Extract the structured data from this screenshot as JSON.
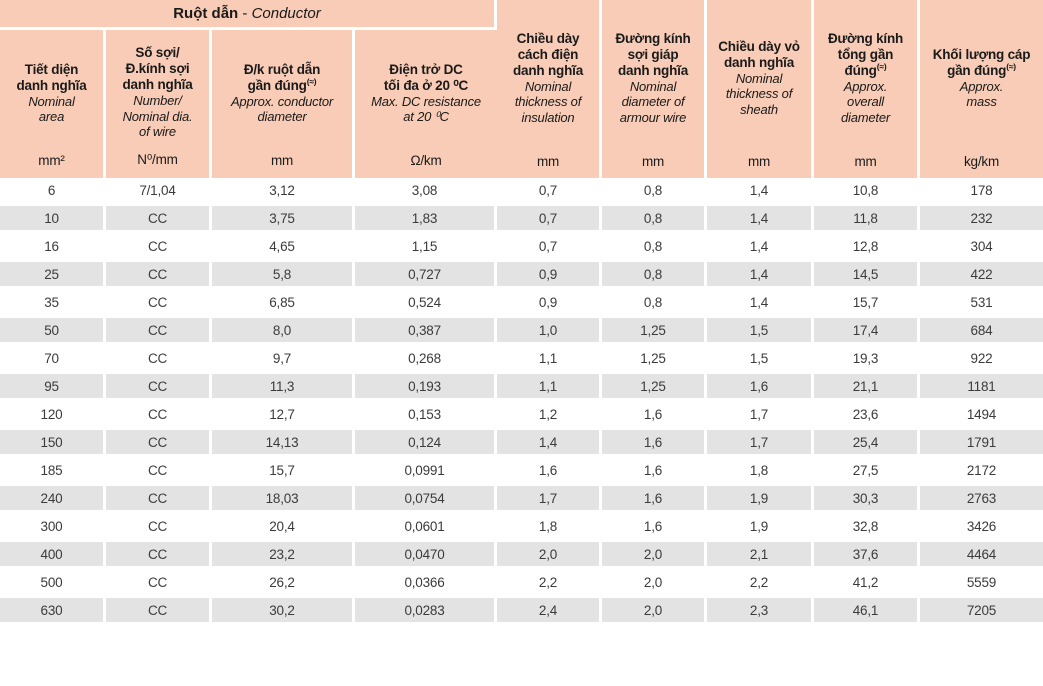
{
  "colors": {
    "header_bg": "#f8ccb6",
    "stripe_bg": "#e3e3e3",
    "divider": "#ffffff",
    "header_text": "#1a1a1a",
    "body_text": "#3b3b3b"
  },
  "table": {
    "group_header": {
      "vi": "Ruột dẫn",
      "sep": " - ",
      "en": "Conductor"
    },
    "columns": [
      {
        "key": "nominal-area",
        "vi": [
          "Tiết diện",
          "danh nghĩa"
        ],
        "en": [
          "Nominal",
          "area"
        ],
        "unit": "mm²",
        "in_group": true
      },
      {
        "key": "number-dia-of-wire",
        "vi": [
          "Số sợi/",
          "Đ.kính sợi",
          "danh nghĩa"
        ],
        "en": [
          "Number/",
          "Nominal dia.",
          "of wire"
        ],
        "unit": "N⁰/mm",
        "in_group": true
      },
      {
        "key": "conductor-dia",
        "vi": [
          "Đ/k ruột dẫn",
          "gần đúng"
        ],
        "sup": "(≈)",
        "en": [
          "Approx. conductor",
          "diameter"
        ],
        "unit": "mm",
        "in_group": true
      },
      {
        "key": "dc-resistance",
        "vi": [
          "Điện trở DC",
          "tối đa ở 20 ⁰C"
        ],
        "en": [
          "Max. DC resistance",
          "at 20 ⁰C"
        ],
        "unit": "Ω/km",
        "in_group": true
      },
      {
        "key": "insulation-thickness",
        "vi": [
          "Chiều dày",
          "cách điện",
          "danh nghĩa"
        ],
        "en": [
          "Nominal",
          "thickness of",
          "insulation"
        ],
        "unit": "mm",
        "in_group": false
      },
      {
        "key": "armour-wire-dia",
        "vi": [
          "Đường kính",
          "sợi giáp",
          "danh nghĩa"
        ],
        "en": [
          "Nominal",
          "diameter of",
          "armour wire"
        ],
        "unit": "mm",
        "in_group": false
      },
      {
        "key": "sheath-thickness",
        "vi": [
          "Chiều dày vỏ",
          "danh nghĩa"
        ],
        "en": [
          "Nominal",
          "thickness of",
          "sheath"
        ],
        "unit": "mm",
        "in_group": false
      },
      {
        "key": "overall-dia",
        "vi": [
          "Đường kính",
          "tổng gần",
          "đúng"
        ],
        "sup": "(≈)",
        "en": [
          "Approx.",
          "overall",
          "diameter"
        ],
        "unit": "mm",
        "in_group": false
      },
      {
        "key": "mass",
        "vi": [
          "Khối lượng cáp",
          "gần đúng"
        ],
        "sup": "(≈)",
        "en": [
          "Approx.",
          "mass"
        ],
        "unit": "kg/km",
        "in_group": false
      }
    ],
    "rows": [
      [
        "6",
        "7/1,04",
        "3,12",
        "3,08",
        "0,7",
        "0,8",
        "1,4",
        "10,8",
        "178"
      ],
      [
        "10",
        "CC",
        "3,75",
        "1,83",
        "0,7",
        "0,8",
        "1,4",
        "11,8",
        "232"
      ],
      [
        "16",
        "CC",
        "4,65",
        "1,15",
        "0,7",
        "0,8",
        "1,4",
        "12,8",
        "304"
      ],
      [
        "25",
        "CC",
        "5,8",
        "0,727",
        "0,9",
        "0,8",
        "1,4",
        "14,5",
        "422"
      ],
      [
        "35",
        "CC",
        "6,85",
        "0,524",
        "0,9",
        "0,8",
        "1,4",
        "15,7",
        "531"
      ],
      [
        "50",
        "CC",
        "8,0",
        "0,387",
        "1,0",
        "1,25",
        "1,5",
        "17,4",
        "684"
      ],
      [
        "70",
        "CC",
        "9,7",
        "0,268",
        "1,1",
        "1,25",
        "1,5",
        "19,3",
        "922"
      ],
      [
        "95",
        "CC",
        "11,3",
        "0,193",
        "1,1",
        "1,25",
        "1,6",
        "21,1",
        "1181"
      ],
      [
        "120",
        "CC",
        "12,7",
        "0,153",
        "1,2",
        "1,6",
        "1,7",
        "23,6",
        "1494"
      ],
      [
        "150",
        "CC",
        "14,13",
        "0,124",
        "1,4",
        "1,6",
        "1,7",
        "25,4",
        "1791"
      ],
      [
        "185",
        "CC",
        "15,7",
        "0,0991",
        "1,6",
        "1,6",
        "1,8",
        "27,5",
        "2172"
      ],
      [
        "240",
        "CC",
        "18,03",
        "0,0754",
        "1,7",
        "1,6",
        "1,9",
        "30,3",
        "2763"
      ],
      [
        "300",
        "CC",
        "20,4",
        "0,0601",
        "1,8",
        "1,6",
        "1,9",
        "32,8",
        "3426"
      ],
      [
        "400",
        "CC",
        "23,2",
        "0,0470",
        "2,0",
        "2,0",
        "2,1",
        "37,6",
        "4464"
      ],
      [
        "500",
        "CC",
        "26,2",
        "0,0366",
        "2,2",
        "2,0",
        "2,2",
        "41,2",
        "5559"
      ],
      [
        "630",
        "CC",
        "30,2",
        "0,0283",
        "2,4",
        "2,0",
        "2,3",
        "46,1",
        "7205"
      ]
    ]
  }
}
